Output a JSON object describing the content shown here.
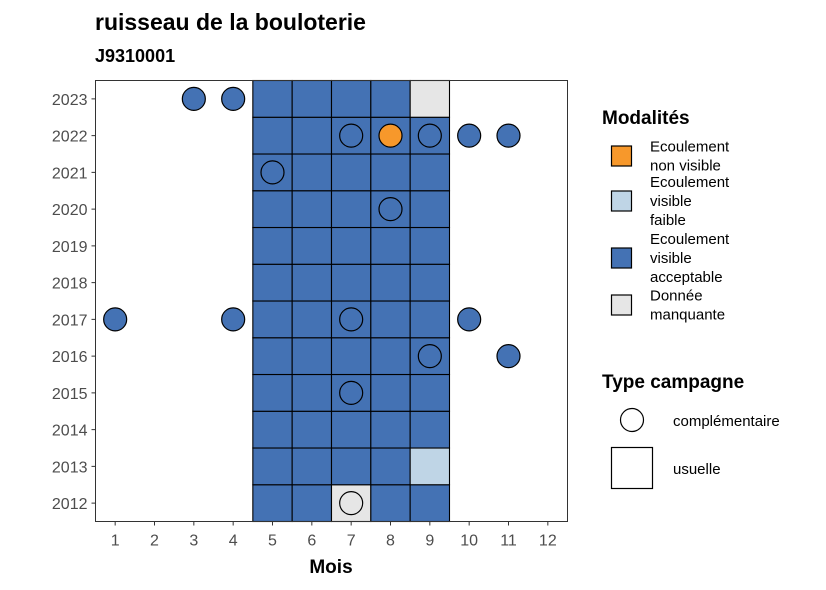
{
  "chart_data": {
    "type": "heatmap",
    "title": "ruisseau de la bouloterie",
    "subtitle": "J9310001",
    "xlabel": "Mois",
    "ylabel": "",
    "x_ticks": [
      "1",
      "2",
      "3",
      "4",
      "5",
      "6",
      "7",
      "8",
      "9",
      "10",
      "11",
      "12"
    ],
    "y_ticks": [
      "2012",
      "2013",
      "2014",
      "2015",
      "2016",
      "2017",
      "2018",
      "2019",
      "2020",
      "2021",
      "2022",
      "2023"
    ],
    "xlim": [
      0.5,
      12.5
    ],
    "ylim": [
      2011.5,
      2023.5
    ],
    "grid": false,
    "legend_position": "right",
    "modalites": {
      "title": "Modalités",
      "items": [
        {
          "key": "nv",
          "label_lines": [
            "Ecoulement",
            "non visible"
          ],
          "color": "#f7982b"
        },
        {
          "key": "vf",
          "label_lines": [
            "Ecoulement",
            "visible",
            "faible"
          ],
          "color": "#bfd5e6"
        },
        {
          "key": "va",
          "label_lines": [
            "Ecoulement",
            "visible",
            "acceptable"
          ],
          "color": "#4472b4"
        },
        {
          "key": "dm",
          "label_lines": [
            "Donnée",
            "manquante"
          ],
          "color": "#e6e6e6"
        }
      ]
    },
    "type_campagne": {
      "title": "Type campagne",
      "items": [
        {
          "key": "complementaire",
          "label": "complémentaire",
          "shape": "circle"
        },
        {
          "key": "usuelle",
          "label": "usuelle",
          "shape": "square"
        }
      ]
    },
    "usuelle_tiles": [
      {
        "month": 5,
        "year": 2012,
        "modalite": "va"
      },
      {
        "month": 6,
        "year": 2012,
        "modalite": "va"
      },
      {
        "month": 7,
        "year": 2012,
        "modalite": "dm"
      },
      {
        "month": 8,
        "year": 2012,
        "modalite": "va"
      },
      {
        "month": 9,
        "year": 2012,
        "modalite": "va"
      },
      {
        "month": 5,
        "year": 2013,
        "modalite": "va"
      },
      {
        "month": 6,
        "year": 2013,
        "modalite": "va"
      },
      {
        "month": 7,
        "year": 2013,
        "modalite": "va"
      },
      {
        "month": 8,
        "year": 2013,
        "modalite": "va"
      },
      {
        "month": 9,
        "year": 2013,
        "modalite": "vf"
      },
      {
        "month": 5,
        "year": 2014,
        "modalite": "va"
      },
      {
        "month": 6,
        "year": 2014,
        "modalite": "va"
      },
      {
        "month": 7,
        "year": 2014,
        "modalite": "va"
      },
      {
        "month": 8,
        "year": 2014,
        "modalite": "va"
      },
      {
        "month": 9,
        "year": 2014,
        "modalite": "va"
      },
      {
        "month": 5,
        "year": 2015,
        "modalite": "va"
      },
      {
        "month": 6,
        "year": 2015,
        "modalite": "va"
      },
      {
        "month": 7,
        "year": 2015,
        "modalite": "va"
      },
      {
        "month": 8,
        "year": 2015,
        "modalite": "va"
      },
      {
        "month": 9,
        "year": 2015,
        "modalite": "va"
      },
      {
        "month": 5,
        "year": 2016,
        "modalite": "va"
      },
      {
        "month": 6,
        "year": 2016,
        "modalite": "va"
      },
      {
        "month": 7,
        "year": 2016,
        "modalite": "va"
      },
      {
        "month": 8,
        "year": 2016,
        "modalite": "va"
      },
      {
        "month": 9,
        "year": 2016,
        "modalite": "va"
      },
      {
        "month": 5,
        "year": 2017,
        "modalite": "va"
      },
      {
        "month": 6,
        "year": 2017,
        "modalite": "va"
      },
      {
        "month": 7,
        "year": 2017,
        "modalite": "va"
      },
      {
        "month": 8,
        "year": 2017,
        "modalite": "va"
      },
      {
        "month": 9,
        "year": 2017,
        "modalite": "va"
      },
      {
        "month": 5,
        "year": 2018,
        "modalite": "va"
      },
      {
        "month": 6,
        "year": 2018,
        "modalite": "va"
      },
      {
        "month": 7,
        "year": 2018,
        "modalite": "va"
      },
      {
        "month": 8,
        "year": 2018,
        "modalite": "va"
      },
      {
        "month": 9,
        "year": 2018,
        "modalite": "va"
      },
      {
        "month": 5,
        "year": 2019,
        "modalite": "va"
      },
      {
        "month": 6,
        "year": 2019,
        "modalite": "va"
      },
      {
        "month": 7,
        "year": 2019,
        "modalite": "va"
      },
      {
        "month": 8,
        "year": 2019,
        "modalite": "va"
      },
      {
        "month": 9,
        "year": 2019,
        "modalite": "va"
      },
      {
        "month": 5,
        "year": 2020,
        "modalite": "va"
      },
      {
        "month": 6,
        "year": 2020,
        "modalite": "va"
      },
      {
        "month": 7,
        "year": 2020,
        "modalite": "va"
      },
      {
        "month": 8,
        "year": 2020,
        "modalite": "va"
      },
      {
        "month": 9,
        "year": 2020,
        "modalite": "va"
      },
      {
        "month": 5,
        "year": 2021,
        "modalite": "va"
      },
      {
        "month": 6,
        "year": 2021,
        "modalite": "va"
      },
      {
        "month": 7,
        "year": 2021,
        "modalite": "va"
      },
      {
        "month": 8,
        "year": 2021,
        "modalite": "va"
      },
      {
        "month": 9,
        "year": 2021,
        "modalite": "va"
      },
      {
        "month": 5,
        "year": 2022,
        "modalite": "va"
      },
      {
        "month": 6,
        "year": 2022,
        "modalite": "va"
      },
      {
        "month": 7,
        "year": 2022,
        "modalite": "va"
      },
      {
        "month": 8,
        "year": 2022,
        "modalite": "va"
      },
      {
        "month": 9,
        "year": 2022,
        "modalite": "va"
      },
      {
        "month": 5,
        "year": 2023,
        "modalite": "va"
      },
      {
        "month": 6,
        "year": 2023,
        "modalite": "va"
      },
      {
        "month": 7,
        "year": 2023,
        "modalite": "va"
      },
      {
        "month": 8,
        "year": 2023,
        "modalite": "va"
      },
      {
        "month": 9,
        "year": 2023,
        "modalite": "dm"
      }
    ],
    "complementaire_points": [
      {
        "month": 3,
        "year": 2023,
        "modalite": "va"
      },
      {
        "month": 4,
        "year": 2023,
        "modalite": "va"
      },
      {
        "month": 7,
        "year": 2022,
        "modalite": "va"
      },
      {
        "month": 8,
        "year": 2022,
        "modalite": "nv"
      },
      {
        "month": 9,
        "year": 2022,
        "modalite": "va"
      },
      {
        "month": 10,
        "year": 2022,
        "modalite": "va"
      },
      {
        "month": 11,
        "year": 2022,
        "modalite": "va"
      },
      {
        "month": 5,
        "year": 2021,
        "modalite": "va"
      },
      {
        "month": 8,
        "year": 2020,
        "modalite": "va"
      },
      {
        "month": 1,
        "year": 2017,
        "modalite": "va"
      },
      {
        "month": 4,
        "year": 2017,
        "modalite": "va"
      },
      {
        "month": 7,
        "year": 2017,
        "modalite": "va"
      },
      {
        "month": 10,
        "year": 2017,
        "modalite": "va"
      },
      {
        "month": 9,
        "year": 2016,
        "modalite": "va"
      },
      {
        "month": 11,
        "year": 2016,
        "modalite": "va"
      },
      {
        "month": 7,
        "year": 2015,
        "modalite": "va"
      },
      {
        "month": 7,
        "year": 2012,
        "modalite": "dm"
      }
    ]
  }
}
